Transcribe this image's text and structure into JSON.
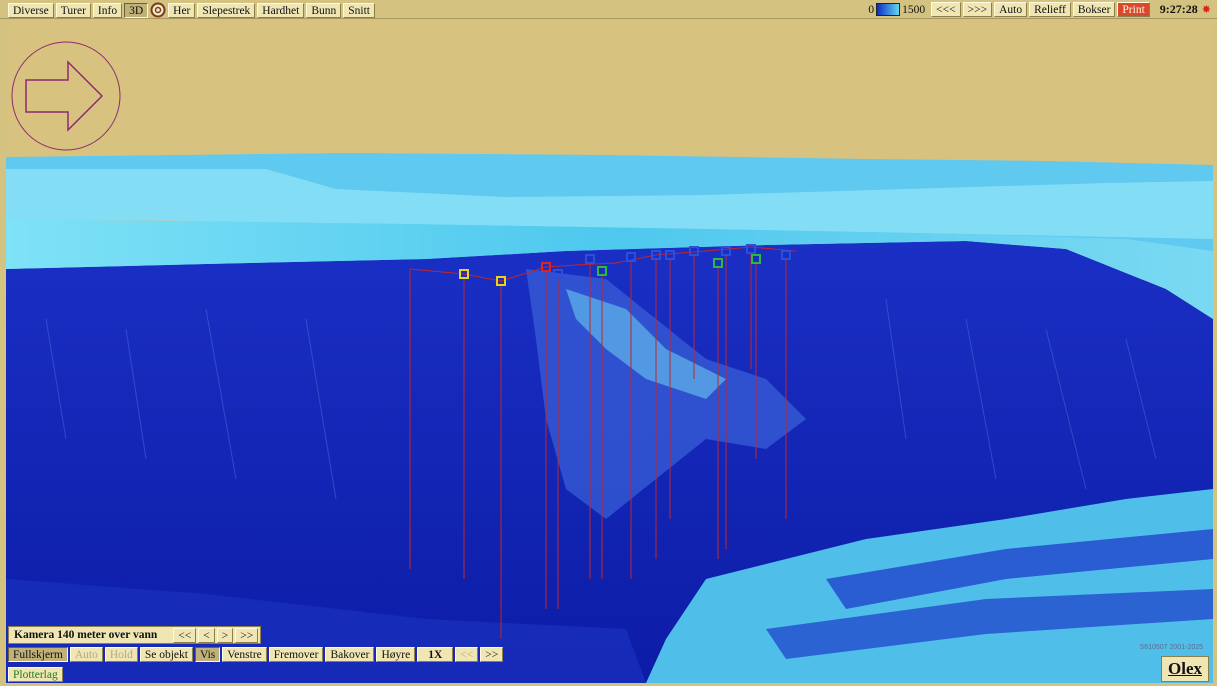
{
  "toolbar": {
    "diverse": "Diverse",
    "turer": "Turer",
    "info": "Info",
    "three_d": "3D",
    "her": "Her",
    "slepestrek": "Slepestrek",
    "hardhet": "Hardhet",
    "bunn": "Bunn",
    "snitt": "Snitt"
  },
  "depth_scale": {
    "min": "0",
    "max": "1500"
  },
  "right_toolbar": {
    "prev": "<<<",
    "next": ">>>",
    "auto": "Auto",
    "relieff": "Relieff",
    "bokser": "Bokser",
    "print": "Print",
    "clock": "9:27:28"
  },
  "camera": {
    "label": "Kamera 140 meter over vann",
    "fast_back": "<<",
    "back": "<",
    "forward": ">",
    "fast_forward": ">>"
  },
  "nav": {
    "fullskjerm": "Fullskjerm",
    "auto": "Auto",
    "hold": "Hold",
    "se_objekt": "Se objekt",
    "vis": "Vis",
    "venstre": "Venstre",
    "fremover": "Fremover",
    "bakover": "Bakover",
    "hoyre": "Høyre",
    "speed": "1X",
    "slower": "<<",
    "faster": ">>"
  },
  "plotterlag": "Plotterlag",
  "watermark": "S610507 2001-2025",
  "logo": "Olex",
  "colors": {
    "sky": "#d7c27f",
    "seabed_deep": "#0d1eb0",
    "seabed_shallow": "#6ad8f2",
    "track_line": "#c0262a",
    "compass": "#8f2b6e"
  },
  "icons": {
    "her": "target-circle-icon",
    "compass": "direction-arrow-icon",
    "clock": "sun-icon"
  },
  "markers": [
    "yellow",
    "yellow",
    "red",
    "blue",
    "green",
    "blue",
    "blue",
    "blue",
    "blue",
    "blue",
    "green",
    "blue",
    "green",
    "blue",
    "blue"
  ]
}
